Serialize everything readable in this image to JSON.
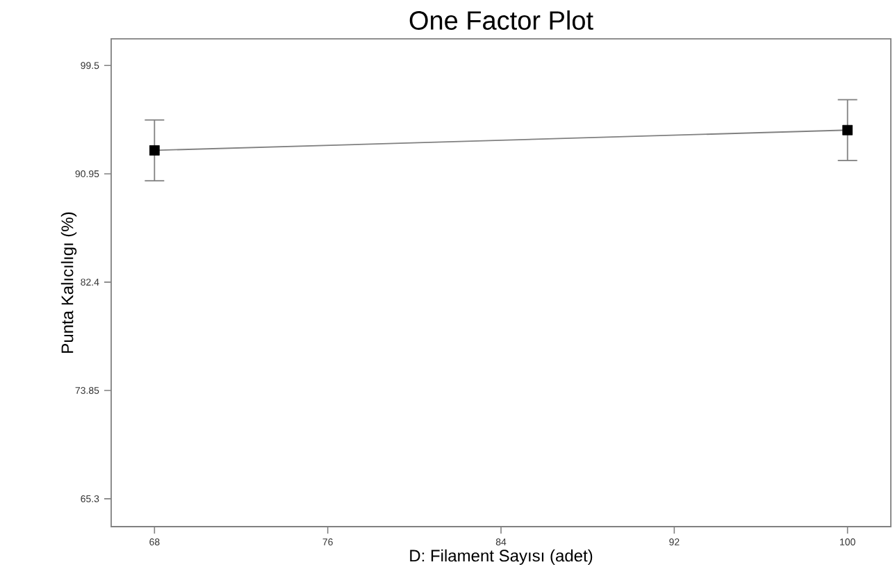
{
  "chart_data": {
    "type": "line",
    "title": "One Factor Plot",
    "xlabel": "D: Filament Sayısı (adet)",
    "ylabel": "Punta Kalıcılıgı (%)",
    "x": [
      68,
      100
    ],
    "series": [
      {
        "color": "#000000",
        "values": [
          92.8,
          94.4
        ],
        "errors": [
          2.4,
          2.4
        ]
      }
    ],
    "xlim": [
      66,
      102
    ],
    "ylim": [
      63.1,
      101.6
    ],
    "xticks": [
      68,
      76,
      84,
      92,
      100
    ],
    "yticks": [
      65.3,
      73.85,
      82.4,
      90.95,
      99.5
    ],
    "grid": false,
    "marker": "square",
    "line_style": "solid"
  }
}
